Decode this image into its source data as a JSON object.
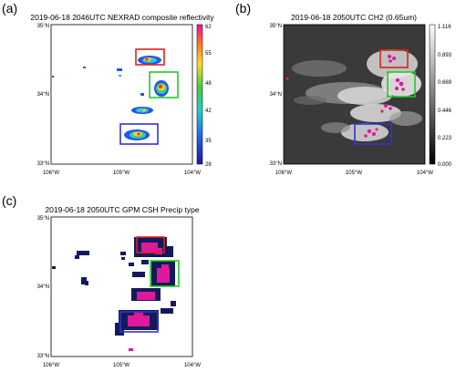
{
  "figure": {
    "panels": [
      {
        "id": "a",
        "letter": "(a)",
        "title": "2019-06-18 2046UTC NEXRAD composite reflectivity",
        "x_ticks": [
          "106°W",
          "105°W",
          "104°W"
        ],
        "y_ticks": [
          "35°N",
          "34°N",
          "33°N"
        ],
        "colorbar": {
          "ticks": [
            "62",
            "55",
            "48",
            "42",
            "35",
            "28"
          ]
        }
      },
      {
        "id": "b",
        "letter": "(b)",
        "title": "2019-06-18 2050UTC CH2 (0.65um)",
        "x_ticks": [
          "106°W",
          "105°W",
          "104°W"
        ],
        "y_ticks": [
          "35°N",
          "34°N",
          "33°N"
        ],
        "colorbar": {
          "ticks": [
            "1.116",
            "0.893",
            "0.669",
            "0.446",
            "0.223",
            "0.000"
          ]
        }
      },
      {
        "id": "c",
        "letter": "(c)",
        "title": "2019-06-18 2050UTC GPM CSH Precip type",
        "x_ticks": [
          "106°W",
          "105°W",
          "104°W"
        ],
        "y_ticks": [
          "35°N",
          "34°N",
          "33°N"
        ]
      }
    ],
    "box_colors": {
      "red": "#e02020",
      "green": "#22cc22",
      "blue": "#3333cc"
    },
    "fill_colors": {
      "magenta": "#e0189a",
      "navy": "#121a5c"
    }
  }
}
